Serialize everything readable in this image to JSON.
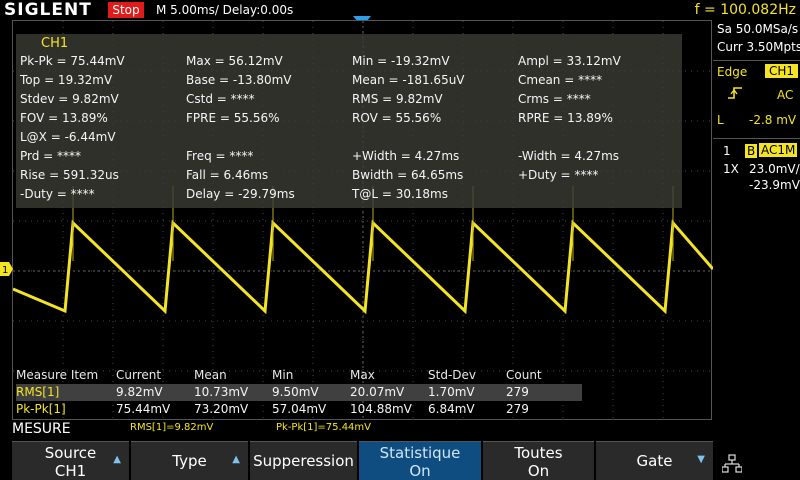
{
  "header": {
    "brand": "SIGLENT",
    "run_state": "Stop",
    "timebase": "M 5.00ms/ Delay:0.00s",
    "frequency": "f = 100.082Hz"
  },
  "measurements": {
    "title": "CH1",
    "rows": [
      [
        "Pk-Pk = 75.44mV",
        "Max = 56.12mV",
        "Min = -19.32mV",
        "Ampl = 33.12mV"
      ],
      [
        "Top = 19.32mV",
        "Base = -13.80mV",
        "Mean = -181.65uV",
        "Cmean = ****"
      ],
      [
        "Stdev = 9.82mV",
        "Cstd = ****",
        "RMS = 9.82mV",
        "Crms = ****"
      ],
      [
        "FOV = 13.89%",
        "FPRE = 55.56%",
        "ROV = 55.56%",
        "RPRE = 13.89%"
      ],
      [
        "L@X = -6.44mV",
        "",
        "",
        ""
      ],
      [
        "Prd = ****",
        "Freq = ****",
        "+Width = 4.27ms",
        "-Width = 4.27ms"
      ],
      [
        "Rise = 591.32us",
        "Fall = 6.46ms",
        "Bwidth = 64.65ms",
        "+Duty = ****"
      ],
      [
        "-Duty = ****",
        "Delay = -29.79ms",
        "T@L = 30.18ms",
        ""
      ]
    ]
  },
  "statistics": {
    "headers": [
      "Measure Item",
      "Current",
      "Mean",
      "Min",
      "Max",
      "Std-Dev",
      "Count"
    ],
    "rows": [
      [
        "RMS[1]",
        "9.82mV",
        "10.73mV",
        "9.50mV",
        "20.07mV",
        "1.70mV",
        "279"
      ],
      [
        "Pk-Pk[1]",
        "75.44mV",
        "73.20mV",
        "57.04mV",
        "104.88mV",
        "6.84mV",
        "279"
      ]
    ]
  },
  "right_panel": {
    "sample_rate": "Sa 50.0MSa/s",
    "memory": "Curr 3.50Mpts",
    "trigger_type": "Edge",
    "trigger_source": "CH1",
    "trigger_slope_icon": "rising-edge-icon",
    "trigger_coupling": "AC",
    "trigger_level_label": "L",
    "trigger_level": "-2.8 mV",
    "channel_number": "1",
    "bandwidth_badge": "B",
    "channel_coupling": "AC1M",
    "probe": "1X",
    "volts_div": "23.0mV/",
    "offset": "-23.9mV"
  },
  "channel_marker": "1",
  "mesure_bar": {
    "label": "MESURE",
    "hud_rms": "RMS[1]=9.82mV",
    "hud_pkpk": "Pk-Pk[1]=75.44mV"
  },
  "softkeys": [
    {
      "l1": "Source",
      "l2": "CH1",
      "arrow": "up"
    },
    {
      "l1": "Type",
      "l2": "",
      "arrow": "up"
    },
    {
      "l1": "Supperession",
      "l2": "",
      "arrow": ""
    },
    {
      "l1": "Statistique",
      "l2": "On",
      "arrow": ""
    },
    {
      "l1": "Toutes",
      "l2": "On",
      "arrow": ""
    },
    {
      "l1": "Gate",
      "l2": "",
      "arrow": "down"
    }
  ],
  "colors": {
    "trace": "#f4e424",
    "accent": "#2aa0e8",
    "stop": "#e01b1b"
  }
}
